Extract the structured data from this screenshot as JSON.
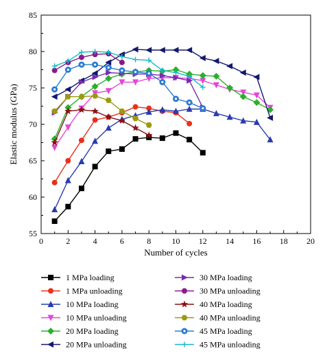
{
  "chart_data": {
    "type": "line",
    "xlabel": "Number of cycles",
    "ylabel": "Elastic modulus (GPa)",
    "xlim": [
      0,
      20
    ],
    "ylim": [
      55,
      85
    ],
    "xticks": [
      0,
      2,
      4,
      6,
      8,
      10,
      12,
      14,
      16,
      18,
      20
    ],
    "yticks": [
      55,
      60,
      65,
      70,
      75,
      80,
      85
    ],
    "grid": false,
    "legend_position": "bottom",
    "series": [
      {
        "name": "1 MPa loading",
        "color": "#000000",
        "marker": "square",
        "filled": true,
        "x": [
          1,
          2,
          3,
          4,
          5,
          6,
          7,
          8,
          9,
          10,
          11,
          12
        ],
        "y": [
          56.7,
          58.7,
          61.2,
          64.2,
          66.3,
          66.6,
          68.0,
          68.2,
          68.1,
          68.8,
          67.9,
          66.1
        ]
      },
      {
        "name": "1 MPa unloading",
        "color": "#e8311a",
        "marker": "circle",
        "filled": true,
        "x": [
          1,
          2,
          3,
          4,
          5,
          6,
          7,
          8,
          9,
          10,
          11
        ],
        "y": [
          62.0,
          65.0,
          67.8,
          70.6,
          71.0,
          71.6,
          72.4,
          72.2,
          71.8,
          71.6,
          70.1
        ]
      },
      {
        "name": "10 MPa loading",
        "color": "#2a3bb0",
        "marker": "triangle-up",
        "filled": true,
        "x": [
          1,
          2,
          3,
          4,
          5,
          6,
          7,
          8,
          9,
          10,
          11,
          12,
          13,
          14,
          15,
          16,
          17
        ],
        "y": [
          58.3,
          62.3,
          64.9,
          67.7,
          69.5,
          70.7,
          71.2,
          71.7,
          72.0,
          71.8,
          72.1,
          72.1,
          71.5,
          71.0,
          70.5,
          70.3,
          67.9
        ]
      },
      {
        "name": "10 MPa unloading",
        "color": "#e546d9",
        "marker": "triangle-down",
        "filled": true,
        "x": [
          1,
          2,
          3,
          4,
          5,
          6,
          7,
          8,
          9,
          10,
          11,
          12,
          13,
          14,
          15,
          16,
          17
        ],
        "y": [
          66.8,
          69.6,
          72.2,
          74.3,
          74.6,
          75.8,
          75.8,
          76.3,
          76.4,
          76.4,
          76.3,
          76.0,
          75.4,
          74.8,
          74.4,
          74.0,
          72.3
        ]
      },
      {
        "name": "20 MPa loading",
        "color": "#2bb02b",
        "marker": "diamond",
        "filled": true,
        "x": [
          1,
          2,
          3,
          4,
          5,
          6,
          7,
          8,
          9,
          10,
          11,
          12,
          13,
          14,
          15,
          16,
          17
        ],
        "y": [
          68.0,
          72.3,
          73.8,
          75.2,
          76.3,
          76.9,
          77.2,
          77.4,
          77.3,
          77.5,
          76.9,
          76.7,
          76.6,
          75.0,
          73.8,
          73.0,
          72.0
        ]
      },
      {
        "name": "20 MPa unloading",
        "color": "#14186e",
        "marker": "triangle-left",
        "filled": true,
        "x": [
          1,
          2,
          3,
          4,
          5,
          6,
          7,
          8,
          9,
          10,
          11,
          12,
          13,
          14,
          15,
          16,
          17
        ],
        "y": [
          73.8,
          74.8,
          76.0,
          77.0,
          78.5,
          79.6,
          80.3,
          80.2,
          80.2,
          80.2,
          80.2,
          79.1,
          78.7,
          78.0,
          77.1,
          76.5,
          70.9
        ]
      },
      {
        "name": "30 MPa loading",
        "color": "#7a2bb0",
        "marker": "triangle-right",
        "filled": true,
        "x": [
          1,
          2,
          3,
          4,
          5,
          6,
          7,
          8,
          9,
          10,
          11,
          12
        ],
        "y": [
          71.6,
          73.8,
          75.8,
          76.5,
          77.1,
          77.0,
          76.9,
          76.9,
          76.7,
          76.4,
          76.0,
          72.3
        ]
      },
      {
        "name": "30 MPa unloading",
        "color": "#8b1a8b",
        "marker": "circle",
        "filled": true,
        "x": [
          1,
          2,
          3,
          4,
          5,
          6
        ],
        "y": [
          77.4,
          78.5,
          79.2,
          79.6,
          79.7,
          78.5
        ]
      },
      {
        "name": "40 MPa loading",
        "color": "#8a1010",
        "marker": "star",
        "filled": true,
        "x": [
          1,
          2,
          3,
          4,
          5,
          6,
          7,
          8
        ],
        "y": [
          67.5,
          71.8,
          72.0,
          71.8,
          71.0,
          70.5,
          69.5,
          68.5
        ]
      },
      {
        "name": "40 MPa unloading",
        "color": "#9a9a12",
        "marker": "hexagon",
        "filled": true,
        "x": [
          1,
          2,
          3,
          4,
          5,
          6,
          7,
          8
        ],
        "y": [
          71.8,
          73.8,
          73.8,
          73.9,
          73.3,
          71.8,
          70.8,
          69.9
        ]
      },
      {
        "name": "45 MPa loading",
        "color": "#2a7bd0",
        "marker": "circle-ring",
        "filled": true,
        "x": [
          1,
          2,
          3,
          4,
          5,
          6,
          7,
          8,
          9,
          10,
          11,
          12
        ],
        "y": [
          74.8,
          77.5,
          78.2,
          78.2,
          77.8,
          77.4,
          77.2,
          77.0,
          75.8,
          73.5,
          73.0,
          72.2
        ]
      },
      {
        "name": "45 MPa unloading",
        "color": "#18b8c8",
        "marker": "plus",
        "filled": false,
        "x": [
          1,
          2,
          3,
          4,
          5,
          6,
          7,
          8,
          9,
          10,
          11,
          12
        ],
        "y": [
          78.0,
          78.7,
          79.9,
          80.0,
          79.9,
          79.3,
          78.9,
          78.8,
          77.4,
          77.1,
          76.6,
          75.1
        ]
      }
    ]
  }
}
